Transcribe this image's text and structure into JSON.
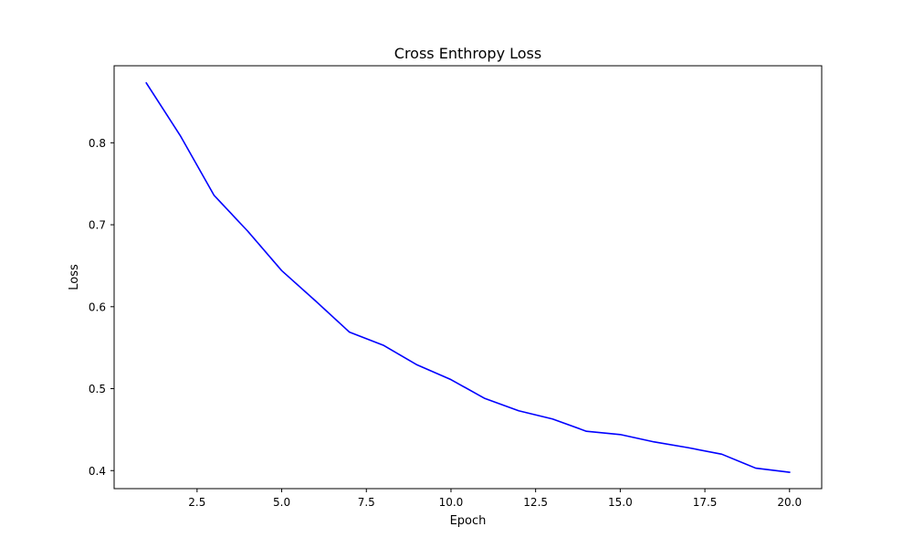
{
  "chart_data": {
    "type": "line",
    "title": "Cross Enthropy Loss",
    "xlabel": "Epoch",
    "ylabel": "Loss",
    "xlim": [
      0.05,
      20.95
    ],
    "ylim": [
      0.378,
      0.894
    ],
    "xticks": [
      2.5,
      5.0,
      7.5,
      10.0,
      12.5,
      15.0,
      17.5,
      20.0
    ],
    "xtick_labels": [
      "2.5",
      "5.0",
      "7.5",
      "10.0",
      "12.5",
      "15.0",
      "17.5",
      "20.0"
    ],
    "yticks": [
      0.4,
      0.5,
      0.6,
      0.7,
      0.8
    ],
    "ytick_labels": [
      "0.4",
      "0.5",
      "0.6",
      "0.7",
      "0.8"
    ],
    "grid": false,
    "series": [
      {
        "color": "#0000ff",
        "x": [
          1,
          2,
          3,
          4,
          5,
          6,
          7,
          8,
          9,
          10,
          11,
          12,
          13,
          14,
          15,
          16,
          17,
          18,
          19,
          20
        ],
        "y": [
          0.873,
          0.809,
          0.736,
          0.692,
          0.644,
          0.607,
          0.569,
          0.553,
          0.529,
          0.511,
          0.488,
          0.473,
          0.463,
          0.448,
          0.444,
          0.435,
          0.428,
          0.42,
          0.403,
          0.398
        ]
      }
    ]
  }
}
